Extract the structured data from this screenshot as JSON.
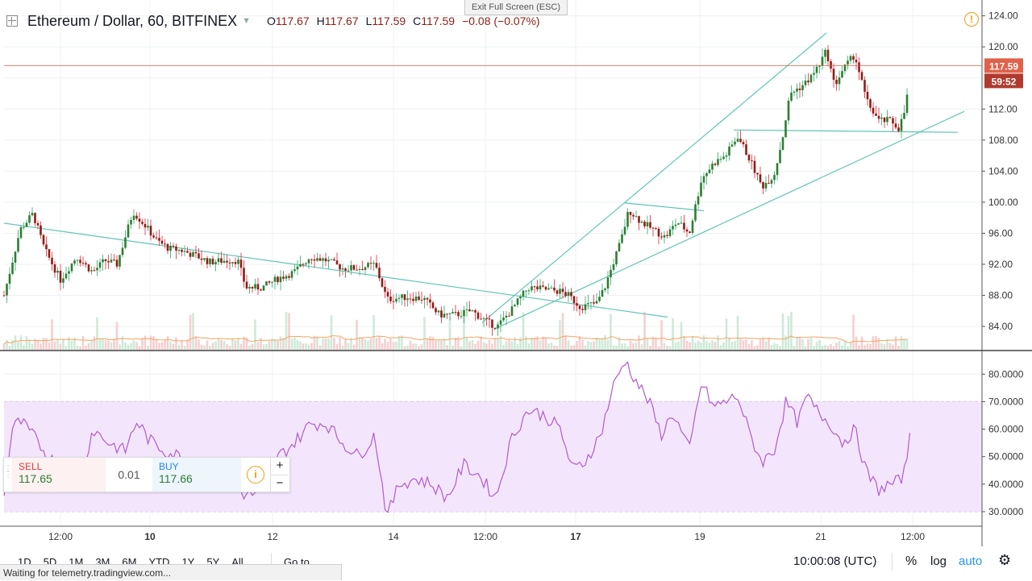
{
  "header": {
    "symbol": "Ethereum / Dollar, 60, BITFINEX",
    "o_label": "O",
    "o": "117.67",
    "h_label": "H",
    "h": "117.67",
    "l_label": "L",
    "l": "117.59",
    "c_label": "C",
    "c": "117.59",
    "change": "−0.08 (−0.07%)"
  },
  "exit_fullscreen": "Exit Full Screen (ESC)",
  "alert_icon": "!",
  "price_badge": "117.59",
  "countdown_badge": "59:52",
  "trade_panel": {
    "sell_label": "SELL",
    "sell_price": "117.65",
    "spread": "0.01",
    "buy_label": "BUY",
    "buy_price": "117.66",
    "info_icon": "i",
    "plus": "+",
    "minus": "−"
  },
  "timeframes": [
    "1D",
    "5D",
    "1M",
    "3M",
    "6M",
    "YTD",
    "1Y",
    "5Y",
    "All"
  ],
  "goto_label": "Go to...",
  "status_text": "Waiting for telemetry.tradingview.com...",
  "time_display": "10:00:08 (UTC)",
  "scale_buttons": {
    "percent": "%",
    "log": "log",
    "auto": "auto"
  },
  "icons": {
    "expand": "expand-icon",
    "gear": "gear-icon",
    "alert": "alert-icon",
    "info": "info-icon"
  },
  "colors": {
    "up": "#53b987",
    "down": "#eb4d5c",
    "body_up": "#2f7d32",
    "body_down": "#8b1f16",
    "trendline": "#5fc4b4",
    "rsi": "#b05bd0",
    "rsi_band": "#f3e6fc",
    "last_price": "#e0614a",
    "volume_ma": "#f4a460"
  },
  "chart_data": {
    "type": "candlestick",
    "symbol": "ETH/USD",
    "timeframe": "60",
    "exchange": "BITFINEX",
    "price_axis": {
      "ticks": [
        84.0,
        88.0,
        92.0,
        96.0,
        100.0,
        104.0,
        108.0,
        112.0,
        116.0,
        120.0,
        124.0
      ],
      "labels": [
        "84.00",
        "88.00",
        "92.00",
        "96.00",
        "100.00",
        "104.00",
        "108.00",
        "112.00",
        "",
        "120.00",
        "124.00"
      ],
      "range": [
        81.0,
        125.0
      ]
    },
    "rsi_axis": {
      "ticks": [
        30,
        40,
        50,
        60,
        70,
        80
      ],
      "labels": [
        "30.0000",
        "40.0000",
        "50.0000",
        "60.0000",
        "70.0000",
        "80.0000"
      ],
      "range": [
        25,
        88
      ],
      "band": [
        30,
        70
      ]
    },
    "time_axis": {
      "labels": [
        "12:00",
        "10",
        "12",
        "14",
        "12:00",
        "17",
        "19",
        "21",
        "12:00"
      ],
      "bold": [
        false,
        true,
        false,
        false,
        false,
        true,
        false,
        false,
        false
      ]
    },
    "last_price": 117.59,
    "price_path": [
      [
        0,
        88.0
      ],
      [
        20,
        96.5
      ],
      [
        36,
        98.5
      ],
      [
        50,
        94.0
      ],
      [
        70,
        90.0
      ],
      [
        90,
        93.0
      ],
      [
        110,
        91.0
      ],
      [
        125,
        92.5
      ],
      [
        140,
        92.0
      ],
      [
        160,
        98.8
      ],
      [
        175,
        97.0
      ],
      [
        190,
        95.0
      ],
      [
        205,
        94.0
      ],
      [
        220,
        93.8
      ],
      [
        240,
        93.0
      ],
      [
        255,
        92.3
      ],
      [
        275,
        92.5
      ],
      [
        290,
        92.5
      ],
      [
        300,
        89.0
      ],
      [
        320,
        89.0
      ],
      [
        340,
        90.2
      ],
      [
        360,
        91.0
      ],
      [
        380,
        93.0
      ],
      [
        400,
        92.5
      ],
      [
        420,
        91.5
      ],
      [
        440,
        91.5
      ],
      [
        460,
        92.0
      ],
      [
        475,
        87.5
      ],
      [
        500,
        87.8
      ],
      [
        520,
        87.6
      ],
      [
        540,
        85.5
      ],
      [
        560,
        85.5
      ],
      [
        580,
        86.0
      ],
      [
        600,
        84.5
      ],
      [
        612,
        84.0
      ],
      [
        630,
        86.2
      ],
      [
        650,
        89.0
      ],
      [
        670,
        88.8
      ],
      [
        690,
        88.5
      ],
      [
        700,
        88.0
      ],
      [
        715,
        86.5
      ],
      [
        735,
        87.0
      ],
      [
        745,
        89.0
      ],
      [
        755,
        92.0
      ],
      [
        765,
        95.0
      ],
      [
        775,
        99.0
      ],
      [
        790,
        97.5
      ],
      [
        805,
        96.5
      ],
      [
        820,
        95.5
      ],
      [
        835,
        97.5
      ],
      [
        850,
        96.0
      ],
      [
        865,
        103.0
      ],
      [
        880,
        105.0
      ],
      [
        895,
        106.0
      ],
      [
        910,
        108.5
      ],
      [
        925,
        105.5
      ],
      [
        940,
        102.0
      ],
      [
        955,
        103.5
      ],
      [
        965,
        108.0
      ],
      [
        975,
        114.0
      ],
      [
        990,
        115.0
      ],
      [
        1000,
        116.0
      ],
      [
        1010,
        117.5
      ],
      [
        1020,
        119.5
      ],
      [
        1030,
        115.0
      ],
      [
        1040,
        117.0
      ],
      [
        1055,
        119.0
      ],
      [
        1070,
        113.0
      ],
      [
        1085,
        110.5
      ],
      [
        1100,
        110.5
      ],
      [
        1110,
        109.5
      ],
      [
        1118,
        112.0
      ],
      [
        1125,
        117.6
      ]
    ],
    "rsi_path": [
      [
        0,
        35
      ],
      [
        10,
        60
      ],
      [
        20,
        63
      ],
      [
        35,
        58
      ],
      [
        55,
        50
      ],
      [
        75,
        45
      ],
      [
        95,
        42
      ],
      [
        110,
        60
      ],
      [
        130,
        55
      ],
      [
        150,
        52
      ],
      [
        165,
        63
      ],
      [
        180,
        56
      ],
      [
        200,
        52
      ],
      [
        220,
        50
      ],
      [
        240,
        43
      ],
      [
        260,
        41
      ],
      [
        280,
        40
      ],
      [
        300,
        36
      ],
      [
        320,
        37
      ],
      [
        340,
        50
      ],
      [
        360,
        55
      ],
      [
        380,
        62
      ],
      [
        400,
        62
      ],
      [
        420,
        55
      ],
      [
        440,
        50
      ],
      [
        460,
        58
      ],
      [
        475,
        28
      ],
      [
        490,
        40
      ],
      [
        510,
        42
      ],
      [
        530,
        40
      ],
      [
        550,
        35
      ],
      [
        570,
        47
      ],
      [
        590,
        43
      ],
      [
        610,
        35
      ],
      [
        630,
        57
      ],
      [
        650,
        67
      ],
      [
        670,
        65
      ],
      [
        690,
        60
      ],
      [
        705,
        45
      ],
      [
        720,
        48
      ],
      [
        740,
        58
      ],
      [
        755,
        75
      ],
      [
        770,
        85
      ],
      [
        785,
        77
      ],
      [
        800,
        70
      ],
      [
        815,
        58
      ],
      [
        830,
        66
      ],
      [
        850,
        52
      ],
      [
        865,
        77
      ],
      [
        880,
        68
      ],
      [
        895,
        70
      ],
      [
        910,
        72
      ],
      [
        925,
        58
      ],
      [
        940,
        48
      ],
      [
        955,
        52
      ],
      [
        970,
        70
      ],
      [
        985,
        62
      ],
      [
        995,
        72
      ],
      [
        1010,
        66
      ],
      [
        1025,
        62
      ],
      [
        1040,
        55
      ],
      [
        1055,
        60
      ],
      [
        1070,
        44
      ],
      [
        1085,
        38
      ],
      [
        1100,
        40
      ],
      [
        1110,
        41
      ],
      [
        1118,
        45
      ],
      [
        1125,
        63
      ]
    ],
    "trendlines": [
      {
        "from": [
          5,
          97.3
        ],
        "to": [
          828,
          85.2
        ]
      },
      {
        "from": [
          598,
          84.5
        ],
        "to": [
          1025,
          121.8
        ]
      },
      {
        "from": [
          612,
          83.6
        ],
        "to": [
          1196,
          111.7
        ]
      },
      {
        "from": [
          775,
          99.9
        ],
        "to": [
          873,
          98.9
        ]
      },
      {
        "from": [
          910,
          109.3
        ],
        "to": [
          1188,
          109.0
        ]
      }
    ]
  }
}
